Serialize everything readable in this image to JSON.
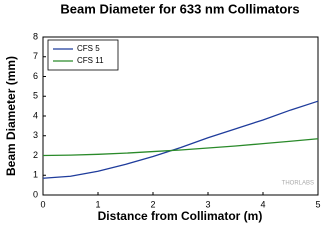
{
  "chart_data": {
    "type": "line",
    "title": "Beam Diameter for 633 nm Collimators",
    "x_label": "Distance from Collimator (m)",
    "y_label": "Beam Diameter (mm)",
    "watermark": "THORLABS",
    "x": [
      0,
      0.5,
      1,
      1.5,
      2,
      2.5,
      3,
      3.5,
      4,
      4.5,
      5
    ],
    "series": [
      {
        "name": "CFS 5",
        "color": "#1f3c9c",
        "values": [
          0.85,
          0.95,
          1.2,
          1.55,
          1.95,
          2.4,
          2.9,
          3.35,
          3.8,
          4.3,
          4.75
        ]
      },
      {
        "name": "CFS 11",
        "color": "#2a8a2a",
        "values": [
          2.0,
          2.02,
          2.06,
          2.12,
          2.2,
          2.28,
          2.38,
          2.48,
          2.6,
          2.72,
          2.85
        ]
      }
    ],
    "xlim": [
      0,
      5
    ],
    "xticks": [
      0,
      1,
      2,
      3,
      4,
      5
    ],
    "ylim": [
      0,
      8
    ],
    "yticks": [
      0,
      1,
      2,
      3,
      4,
      5,
      6,
      7,
      8
    ],
    "grid": false,
    "legend": "top-left"
  }
}
